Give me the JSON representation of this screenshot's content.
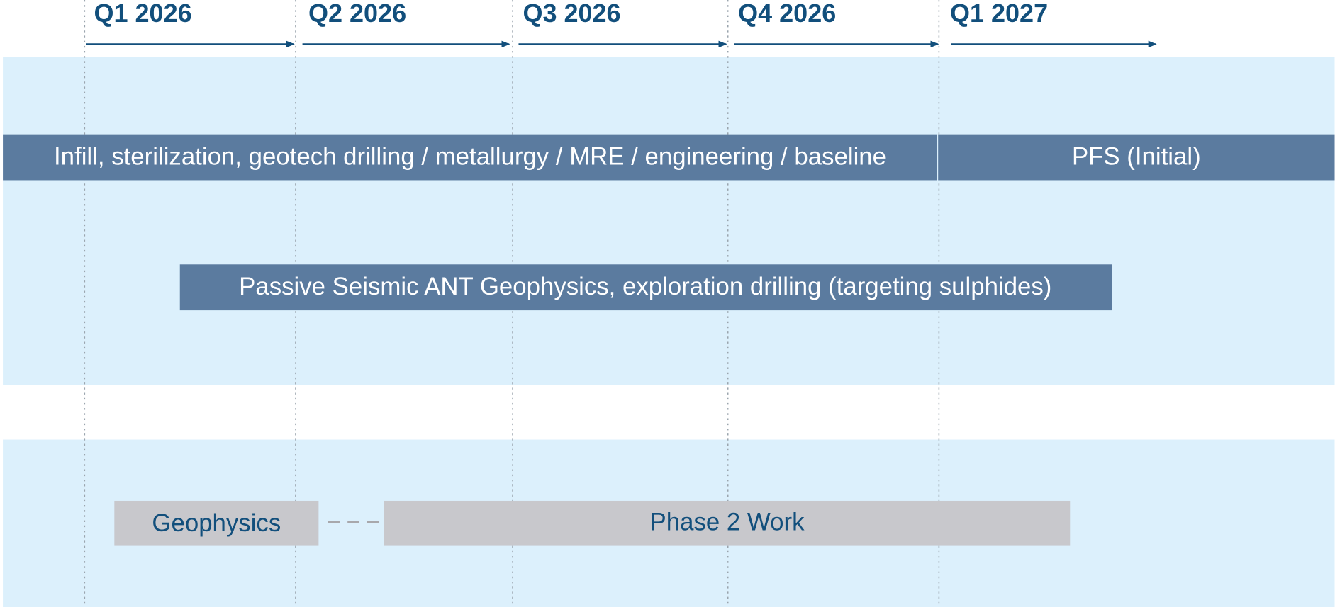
{
  "quarters": [
    "Q1 2026",
    "Q2 2026",
    "Q3 2026",
    "Q4 2026",
    "Q1 2027"
  ],
  "bars": [
    {
      "label": "Infill, sterilization, geotech drilling / metallurgy / MRE / engineering / baseline"
    },
    {
      "label": "PFS (Initial)"
    },
    {
      "label": "Passive Seismic ANT Geophysics, exploration drilling (targeting sulphides)"
    },
    {
      "label": "Geophysics"
    },
    {
      "label": "Phase 2 Work"
    }
  ]
}
